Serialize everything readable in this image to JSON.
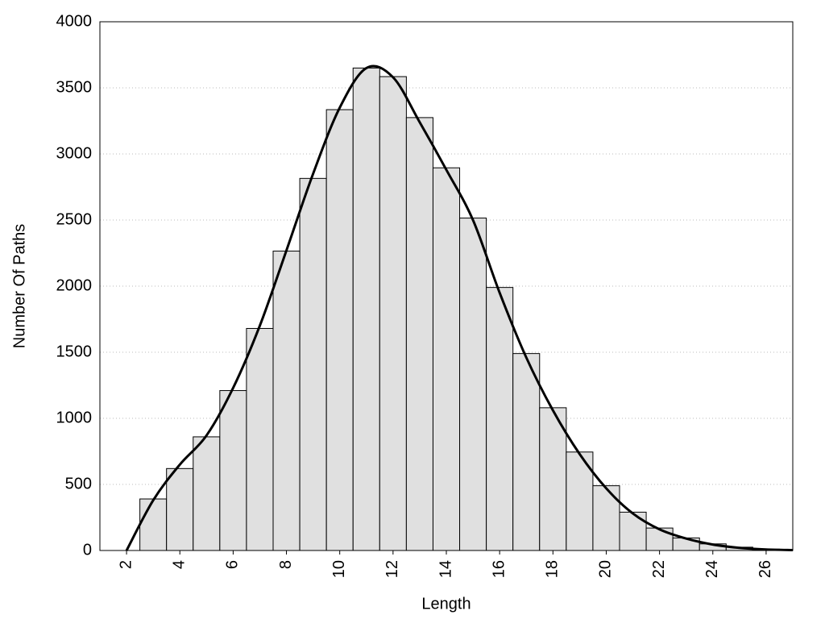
{
  "chart_data": {
    "type": "histogram",
    "xlabel": "Length",
    "ylabel": "Number Of Paths",
    "bins": [
      2.5,
      3.5,
      4.5,
      5.5,
      6.5,
      7.5,
      8.5,
      9.5,
      10.5,
      11.5,
      12.5,
      13.5,
      14.5,
      15.5,
      16.5,
      17.5,
      18.5,
      19.5,
      20.5,
      21.5,
      22.5,
      23.5,
      24.5,
      25.5,
      26.5
    ],
    "values": [
      390,
      620,
      860,
      1210,
      1680,
      2265,
      2815,
      3335,
      3650,
      3585,
      3275,
      2895,
      2515,
      1990,
      1490,
      1080,
      745,
      490,
      290,
      170,
      95,
      50,
      25,
      10
    ],
    "color": "#e0e0e0",
    "edgecolor": "#000000",
    "curve": {
      "x": [
        2,
        3,
        4,
        5,
        6,
        7,
        8,
        9,
        10,
        11,
        12,
        13,
        14,
        15,
        16,
        17,
        18,
        19,
        20,
        21,
        22,
        23,
        24,
        25,
        26,
        27
      ],
      "values": [
        0,
        380,
        650,
        870,
        1230,
        1700,
        2270,
        2850,
        3350,
        3650,
        3580,
        3240,
        2880,
        2500,
        1950,
        1460,
        1060,
        730,
        470,
        280,
        160,
        90,
        45,
        20,
        8,
        3
      ],
      "color": "#000000"
    },
    "xlim": [
      1,
      27
    ],
    "ylim": [
      0,
      4000
    ],
    "xticks": [
      2,
      4,
      6,
      8,
      10,
      12,
      14,
      16,
      18,
      20,
      22,
      24,
      26
    ],
    "yticks": [
      0,
      500,
      1000,
      1500,
      2000,
      2500,
      3000,
      3500,
      4000
    ],
    "grid": "y"
  }
}
